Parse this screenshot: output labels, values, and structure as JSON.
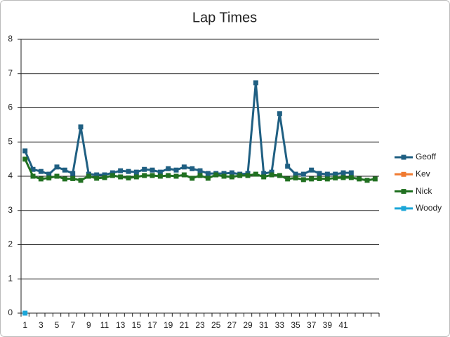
{
  "chart_data": {
    "type": "line",
    "title": "Lap Times",
    "categories": [
      "1",
      null,
      "3",
      null,
      "5",
      null,
      "7",
      null,
      "9",
      null,
      "11",
      null,
      "13",
      null,
      "15",
      null,
      "17",
      null,
      "19",
      null,
      "21",
      null,
      "23",
      null,
      "25",
      null,
      "27",
      null,
      "29",
      null,
      "31",
      null,
      "33",
      null,
      "35",
      null,
      "37",
      null,
      "39",
      null,
      "41",
      null,
      null,
      null,
      null
    ],
    "series": [
      {
        "name": "Geoff",
        "color": "#1f5f82",
        "values": [
          4.74,
          4.2,
          4.14,
          4.06,
          4.27,
          4.18,
          4.08,
          5.44,
          4.06,
          4.04,
          4.04,
          4.1,
          4.16,
          4.14,
          4.12,
          4.2,
          4.18,
          4.12,
          4.22,
          4.18,
          4.27,
          4.22,
          4.16,
          4.08,
          4.08,
          4.08,
          4.1,
          4.06,
          4.08,
          6.73,
          4.08,
          4.12,
          5.83,
          4.29,
          4.06,
          4.06,
          4.18,
          4.08,
          4.06,
          4.06,
          4.1,
          4.1,
          null,
          null,
          null
        ]
      },
      {
        "name": "Kev",
        "color": "#f07a30",
        "values": [
          null,
          null,
          null,
          null,
          null,
          null,
          null,
          null,
          null,
          null,
          null,
          null,
          null,
          null,
          null,
          null,
          null,
          null,
          null,
          null,
          null,
          null,
          null,
          null,
          null,
          null,
          null,
          null,
          null,
          null,
          null,
          null,
          null,
          null,
          null,
          null,
          null,
          null,
          null,
          null,
          null,
          null,
          null,
          null,
          null
        ]
      },
      {
        "name": "Nick",
        "color": "#217021",
        "values": [
          4.5,
          4.0,
          3.92,
          3.95,
          4.0,
          3.92,
          3.93,
          3.88,
          4.0,
          3.94,
          3.96,
          4.02,
          3.98,
          3.95,
          3.98,
          4.02,
          4.02,
          4.0,
          4.02,
          4.0,
          4.04,
          3.94,
          4.02,
          3.94,
          4.04,
          4.0,
          3.98,
          4.02,
          4.02,
          4.06,
          3.98,
          4.04,
          4.02,
          3.92,
          3.95,
          3.9,
          3.92,
          3.93,
          3.92,
          3.95,
          3.96,
          3.96,
          3.92,
          3.88,
          3.92
        ]
      },
      {
        "name": "Woody",
        "color": "#1ba6d8",
        "values": [
          0,
          null,
          null,
          null,
          null,
          null,
          null,
          null,
          null,
          null,
          null,
          null,
          null,
          null,
          null,
          null,
          null,
          null,
          null,
          null,
          null,
          null,
          null,
          null,
          null,
          null,
          null,
          null,
          null,
          null,
          null,
          null,
          null,
          null,
          null,
          null,
          null,
          null,
          null,
          null,
          null,
          null,
          null,
          null,
          null
        ]
      }
    ],
    "ylim": [
      0,
      8
    ],
    "yticks": [
      0,
      1,
      2,
      3,
      4,
      5,
      6,
      7,
      8
    ],
    "grid": true,
    "legend": "right"
  }
}
